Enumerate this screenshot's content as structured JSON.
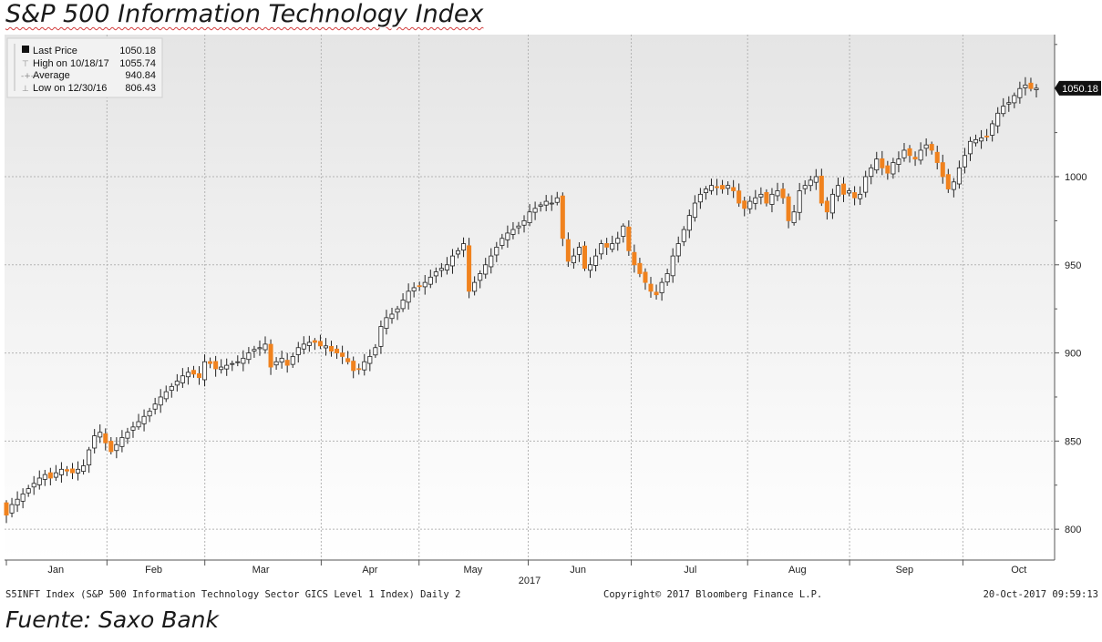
{
  "title": "S&P 500 Information Technology Index",
  "source": "Fuente: Saxo Bank",
  "footer": {
    "left": "S5INFT Index (S&P 500 Information Technology Sector GICS Level 1 Index)  Daily 2",
    "middle": "Copyright© 2017 Bloomberg Finance L.P.",
    "right": "20-Oct-2017 09:59:13"
  },
  "legend": [
    {
      "label": "Last Price",
      "value": "1050.18"
    },
    {
      "label": "High on 10/18/17",
      "value": "1055.74"
    },
    {
      "label": "Average",
      "value": "940.84"
    },
    {
      "label": "Low on 12/30/16",
      "value": "806.43"
    }
  ],
  "colors": {
    "up": "#ffffff",
    "down": "#f0821e",
    "outline": "#222222",
    "grid": "#b4b4b4",
    "bg_top": "#e5e5e5",
    "bg_bottom": "#ffffff"
  },
  "chart_data": {
    "type": "candlestick",
    "title": "S&P 500 Information Technology Index",
    "frequency": "Daily",
    "year_label": "2017",
    "ylim": [
      780,
      1080
    ],
    "yticks": [
      800,
      850,
      900,
      950,
      1000
    ],
    "month_labels": [
      "Jan",
      "Feb",
      "Mar",
      "Apr",
      "May",
      "Jun",
      "Jul",
      "Aug",
      "Sep",
      "Oct"
    ],
    "last_price_tag": "1050.18",
    "last_price": 1050.18,
    "high": {
      "date": "10/18/17",
      "value": 1055.74
    },
    "low": {
      "date": "12/30/16",
      "value": 806.43
    },
    "average": 940.84,
    "closes": [
      808,
      814,
      817,
      820,
      823,
      826,
      829,
      831,
      829,
      832,
      834,
      833,
      832,
      834,
      836,
      845,
      853,
      855,
      849,
      844,
      848,
      852,
      855,
      858,
      861,
      864,
      867,
      871,
      875,
      878,
      881,
      884,
      887,
      889,
      888,
      886,
      895,
      894,
      891,
      892,
      893,
      894,
      895,
      897,
      900,
      902,
      903,
      905,
      892,
      895,
      897,
      893,
      898,
      903,
      905,
      906,
      906,
      904,
      904,
      901,
      900,
      898,
      895,
      890,
      891,
      895,
      898,
      903,
      915,
      920,
      922,
      925,
      930,
      935,
      937,
      938,
      940,
      943,
      946,
      948,
      950,
      955,
      958,
      962,
      935,
      940,
      945,
      950,
      955,
      960,
      965,
      968,
      970,
      972,
      975,
      980,
      982,
      984,
      986,
      985,
      988,
      965,
      952,
      955,
      960,
      948,
      950,
      955,
      962,
      960,
      962,
      965,
      972,
      958,
      950,
      945,
      940,
      935,
      933,
      940,
      945,
      955,
      962,
      970,
      978,
      985,
      990,
      993,
      995,
      994,
      993,
      995,
      992,
      985,
      982,
      986,
      988,
      990,
      985,
      990,
      992,
      988,
      975,
      980,
      992,
      995,
      998,
      1000,
      985,
      980,
      990,
      995,
      990,
      992,
      988,
      990,
      1000,
      1005,
      1010,
      1005,
      1002,
      1008,
      1010,
      1015,
      1012,
      1010,
      1015,
      1018,
      1015,
      1008,
      1000,
      993,
      997,
      1005,
      1012,
      1020,
      1021,
      1022,
      1023,
      1030,
      1036,
      1040,
      1042,
      1046,
      1050,
      1052,
      1050,
      1050.18
    ]
  }
}
